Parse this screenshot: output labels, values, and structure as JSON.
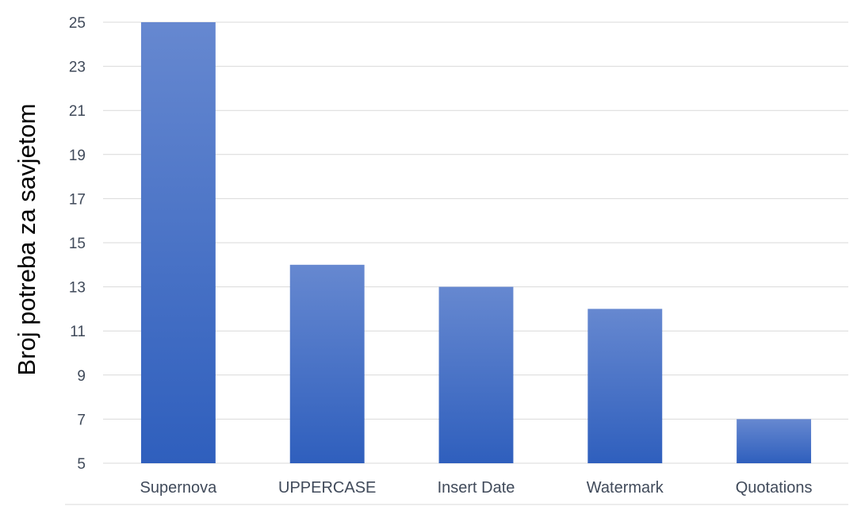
{
  "chart_data": {
    "type": "bar",
    "title": "",
    "xlabel": "",
    "ylabel": "Broj potreba za savjetom",
    "categories": [
      "Supernova",
      "UPPERCASE",
      "Insert Date",
      "Watermark",
      "Quotations"
    ],
    "values": [
      25,
      14,
      13,
      12,
      7
    ],
    "ylim": [
      5,
      25
    ],
    "yticks": [
      "5",
      "7",
      "9",
      "11",
      "13",
      "15",
      "17",
      "19",
      "21",
      "23",
      "25"
    ],
    "grid": true,
    "legend": "none",
    "colors": {
      "bar_top": "#6688d0",
      "bar_bottom": "#2f5fbd"
    }
  }
}
